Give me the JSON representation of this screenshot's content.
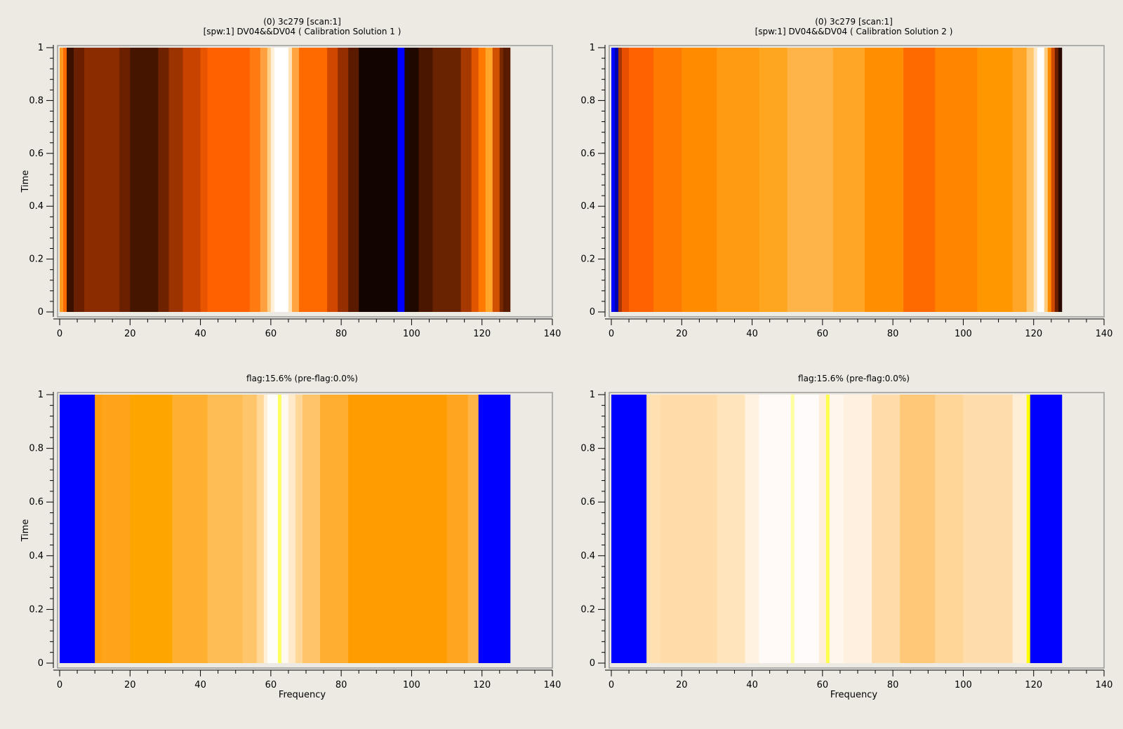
{
  "chart_data": [
    {
      "type": "heatmap",
      "title": "(0) 3c279  [scan:1]",
      "subtitle": "[spw:1] DV04&&DV04  ( Calibration Solution 1 )",
      "xlabel": "",
      "ylabel": "Time",
      "xlim": [
        0,
        140
      ],
      "ylim": [
        0,
        1
      ],
      "xticks": [
        "0",
        "20",
        "40",
        "60",
        "80",
        "100",
        "120",
        "140"
      ],
      "yticks": [
        "0",
        "0.2",
        "0.4",
        "0.6",
        "0.8",
        "1"
      ],
      "data_x_range": [
        0,
        128
      ],
      "bands": [
        {
          "x0": 0,
          "x1": 1,
          "color": "#ff9a20"
        },
        {
          "x0": 1,
          "x1": 2,
          "color": "#ff6a00"
        },
        {
          "x0": 2,
          "x1": 4,
          "color": "#3a1000"
        },
        {
          "x0": 4,
          "x1": 7,
          "color": "#6a2000"
        },
        {
          "x0": 7,
          "x1": 17,
          "color": "#8a2c00"
        },
        {
          "x0": 17,
          "x1": 20,
          "color": "#6b2100"
        },
        {
          "x0": 20,
          "x1": 28,
          "color": "#461500"
        },
        {
          "x0": 28,
          "x1": 31,
          "color": "#6e2200"
        },
        {
          "x0": 31,
          "x1": 35,
          "color": "#9a3300"
        },
        {
          "x0": 35,
          "x1": 40,
          "color": "#c84200"
        },
        {
          "x0": 40,
          "x1": 42,
          "color": "#e85500"
        },
        {
          "x0": 42,
          "x1": 54,
          "color": "#ff6000"
        },
        {
          "x0": 54,
          "x1": 57,
          "color": "#ff7a10"
        },
        {
          "x0": 57,
          "x1": 59,
          "color": "#ffa040"
        },
        {
          "x0": 59,
          "x1": 60,
          "color": "#ffd08a"
        },
        {
          "x0": 60,
          "x1": 61,
          "color": "#fff0da"
        },
        {
          "x0": 61,
          "x1": 65,
          "color": "#ffffff"
        },
        {
          "x0": 65,
          "x1": 66,
          "color": "#ffe4b8"
        },
        {
          "x0": 66,
          "x1": 68,
          "color": "#ffa440"
        },
        {
          "x0": 68,
          "x1": 76,
          "color": "#ff6a00"
        },
        {
          "x0": 76,
          "x1": 79,
          "color": "#d04800"
        },
        {
          "x0": 79,
          "x1": 82,
          "color": "#962f00"
        },
        {
          "x0": 82,
          "x1": 85,
          "color": "#5a1a00"
        },
        {
          "x0": 85,
          "x1": 96,
          "color": "#120400"
        },
        {
          "x0": 96,
          "x1": 98,
          "color": "#0000ff"
        },
        {
          "x0": 98,
          "x1": 102,
          "color": "#1e0800"
        },
        {
          "x0": 102,
          "x1": 106,
          "color": "#4a1600"
        },
        {
          "x0": 106,
          "x1": 114,
          "color": "#6a2300"
        },
        {
          "x0": 114,
          "x1": 117,
          "color": "#a53900"
        },
        {
          "x0": 117,
          "x1": 119,
          "color": "#e05600"
        },
        {
          "x0": 119,
          "x1": 121,
          "color": "#ff7a00"
        },
        {
          "x0": 121,
          "x1": 123,
          "color": "#ffa62a"
        },
        {
          "x0": 123,
          "x1": 125,
          "color": "#d05000"
        },
        {
          "x0": 125,
          "x1": 126,
          "color": "#7a2800"
        },
        {
          "x0": 126,
          "x1": 128,
          "color": "#5a1c00"
        }
      ]
    },
    {
      "type": "heatmap",
      "title": "(0) 3c279  [scan:1]",
      "subtitle": "[spw:1] DV04&&DV04  ( Calibration Solution 2 )",
      "xlabel": "",
      "ylabel": "",
      "xlim": [
        0,
        140
      ],
      "ylim": [
        0,
        1
      ],
      "xticks": [
        "0",
        "20",
        "40",
        "60",
        "80",
        "100",
        "120",
        "140"
      ],
      "yticks": [
        "0",
        "0.2",
        "0.4",
        "0.6",
        "0.8",
        "1"
      ],
      "data_x_range": [
        0,
        128
      ],
      "bands": [
        {
          "x0": 0,
          "x1": 1,
          "color": "#0000ff"
        },
        {
          "x0": 1,
          "x1": 2,
          "color": "#0000b0"
        },
        {
          "x0": 2,
          "x1": 3,
          "color": "#a83400"
        },
        {
          "x0": 3,
          "x1": 5,
          "color": "#e85000"
        },
        {
          "x0": 5,
          "x1": 12,
          "color": "#ff6200"
        },
        {
          "x0": 12,
          "x1": 20,
          "color": "#ff7a00"
        },
        {
          "x0": 20,
          "x1": 30,
          "color": "#ff8c00"
        },
        {
          "x0": 30,
          "x1": 42,
          "color": "#ff9b10"
        },
        {
          "x0": 42,
          "x1": 50,
          "color": "#ffa620"
        },
        {
          "x0": 50,
          "x1": 63,
          "color": "#ffb44a"
        },
        {
          "x0": 63,
          "x1": 72,
          "color": "#ffa626"
        },
        {
          "x0": 72,
          "x1": 83,
          "color": "#ff8e00"
        },
        {
          "x0": 83,
          "x1": 92,
          "color": "#ff6a00"
        },
        {
          "x0": 92,
          "x1": 104,
          "color": "#ff8400"
        },
        {
          "x0": 104,
          "x1": 114,
          "color": "#ff9800"
        },
        {
          "x0": 114,
          "x1": 118,
          "color": "#ffa628"
        },
        {
          "x0": 118,
          "x1": 120,
          "color": "#ffc870"
        },
        {
          "x0": 120,
          "x1": 121,
          "color": "#ffe6be"
        },
        {
          "x0": 121,
          "x1": 123,
          "color": "#ffffff"
        },
        {
          "x0": 123,
          "x1": 124,
          "color": "#ffcc80"
        },
        {
          "x0": 124,
          "x1": 125,
          "color": "#ff8c00"
        },
        {
          "x0": 125,
          "x1": 126,
          "color": "#d04a00"
        },
        {
          "x0": 126,
          "x1": 127,
          "color": "#6a2000"
        },
        {
          "x0": 127,
          "x1": 128,
          "color": "#2a0a00"
        }
      ]
    },
    {
      "type": "heatmap",
      "title": "flag:15.6% (pre-flag:0.0%)",
      "subtitle": "",
      "xlabel": "Frequency",
      "ylabel": "Time",
      "xlim": [
        0,
        140
      ],
      "ylim": [
        0,
        1
      ],
      "xticks": [
        "0",
        "20",
        "40",
        "60",
        "80",
        "100",
        "120",
        "140"
      ],
      "yticks": [
        "0",
        "0.2",
        "0.4",
        "0.6",
        "0.8",
        "1"
      ],
      "data_x_range": [
        0,
        128
      ],
      "bands": [
        {
          "x0": 0,
          "x1": 10,
          "color": "#0000ff"
        },
        {
          "x0": 10,
          "x1": 12,
          "color": "#ffa010"
        },
        {
          "x0": 12,
          "x1": 20,
          "color": "#ffa31a"
        },
        {
          "x0": 20,
          "x1": 32,
          "color": "#ffa500"
        },
        {
          "x0": 32,
          "x1": 42,
          "color": "#ffb030"
        },
        {
          "x0": 42,
          "x1": 52,
          "color": "#ffbd55"
        },
        {
          "x0": 52,
          "x1": 56,
          "color": "#ffc56a"
        },
        {
          "x0": 56,
          "x1": 58,
          "color": "#ffd898"
        },
        {
          "x0": 58,
          "x1": 59,
          "color": "#fff0d8"
        },
        {
          "x0": 59,
          "x1": 62,
          "color": "#fffdf8"
        },
        {
          "x0": 62,
          "x1": 63,
          "color": "#ffff60"
        },
        {
          "x0": 63,
          "x1": 65,
          "color": "#fff8ee"
        },
        {
          "x0": 65,
          "x1": 67,
          "color": "#ffe9c8"
        },
        {
          "x0": 67,
          "x1": 69,
          "color": "#ffd898"
        },
        {
          "x0": 69,
          "x1": 74,
          "color": "#ffc46a"
        },
        {
          "x0": 74,
          "x1": 82,
          "color": "#ffae30"
        },
        {
          "x0": 82,
          "x1": 110,
          "color": "#ff9c00"
        },
        {
          "x0": 110,
          "x1": 116,
          "color": "#ffa520"
        },
        {
          "x0": 116,
          "x1": 119,
          "color": "#ffb448"
        },
        {
          "x0": 119,
          "x1": 128,
          "color": "#0000ff"
        }
      ]
    },
    {
      "type": "heatmap",
      "title": "flag:15.6% (pre-flag:0.0%)",
      "subtitle": "",
      "xlabel": "Frequency",
      "ylabel": "",
      "xlim": [
        0,
        140
      ],
      "ylim": [
        0,
        1
      ],
      "xticks": [
        "0",
        "20",
        "40",
        "60",
        "80",
        "100",
        "120",
        "140"
      ],
      "yticks": [
        "0",
        "0.2",
        "0.4",
        "0.6",
        "0.8",
        "1"
      ],
      "data_x_range": [
        0,
        128
      ],
      "bands": [
        {
          "x0": 0,
          "x1": 10,
          "color": "#0000ff"
        },
        {
          "x0": 10,
          "x1": 14,
          "color": "#ffe0b0"
        },
        {
          "x0": 14,
          "x1": 30,
          "color": "#ffdcaa"
        },
        {
          "x0": 30,
          "x1": 38,
          "color": "#ffe4bc"
        },
        {
          "x0": 38,
          "x1": 42,
          "color": "#fff2e0"
        },
        {
          "x0": 42,
          "x1": 51,
          "color": "#fffaf8"
        },
        {
          "x0": 51,
          "x1": 52,
          "color": "#ffffa0"
        },
        {
          "x0": 52,
          "x1": 59,
          "color": "#fffbfa"
        },
        {
          "x0": 59,
          "x1": 61,
          "color": "#ffefda"
        },
        {
          "x0": 61,
          "x1": 62,
          "color": "#ffff50"
        },
        {
          "x0": 62,
          "x1": 66,
          "color": "#fff6ee"
        },
        {
          "x0": 66,
          "x1": 74,
          "color": "#fff0e0"
        },
        {
          "x0": 74,
          "x1": 82,
          "color": "#ffdcaa"
        },
        {
          "x0": 82,
          "x1": 92,
          "color": "#ffc878"
        },
        {
          "x0": 92,
          "x1": 100,
          "color": "#ffd698"
        },
        {
          "x0": 100,
          "x1": 114,
          "color": "#ffdcac"
        },
        {
          "x0": 114,
          "x1": 118,
          "color": "#ffeed6"
        },
        {
          "x0": 118,
          "x1": 119,
          "color": "#ffff00"
        },
        {
          "x0": 119,
          "x1": 128,
          "color": "#0000ff"
        }
      ]
    }
  ]
}
